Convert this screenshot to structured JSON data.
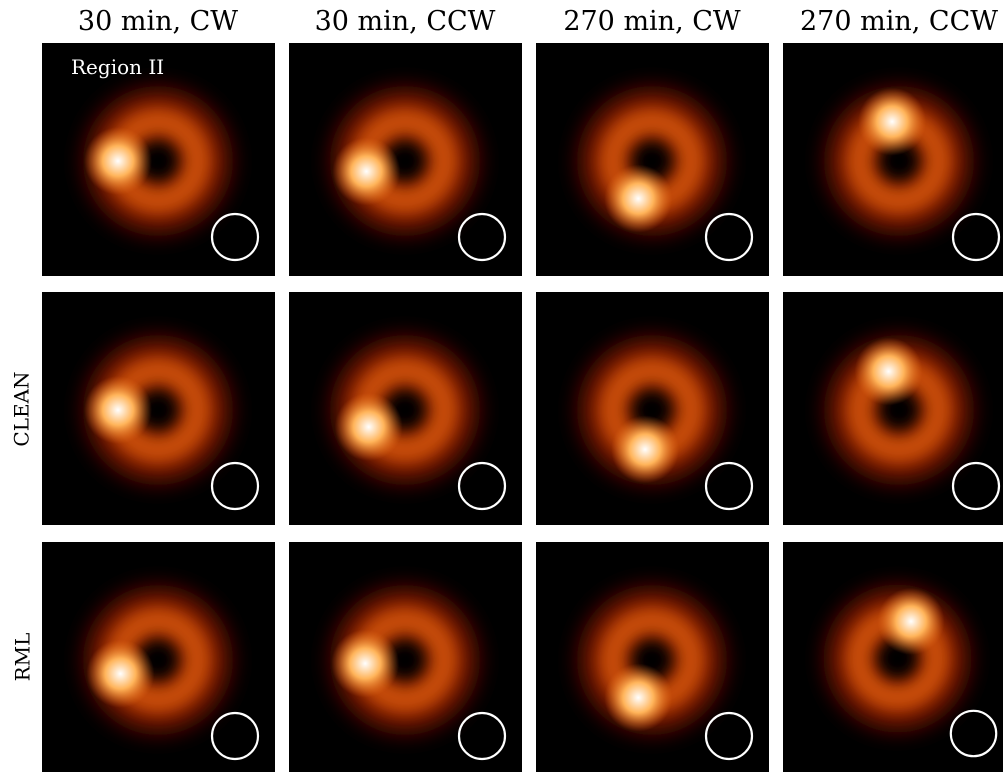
{
  "columns": [
    "30 min, CW",
    "30 min, CCW",
    "270 min, CW",
    "270 min, CCW"
  ],
  "rows": [
    "",
    "CLEAN",
    "RML"
  ],
  "region_label": "Region II",
  "colors": {
    "background": "#000000",
    "colormap": [
      "#000000",
      "#5a0a00",
      "#b83a00",
      "#e8701a",
      "#ffb45a",
      "#ffffff"
    ],
    "beam_circle": "#ffffff"
  },
  "panels": [
    {
      "row": 0,
      "col": 0,
      "hotspot_angle_deg": 180,
      "hotspot_strength": 1.0
    },
    {
      "row": 0,
      "col": 1,
      "hotspot_angle_deg": 195,
      "hotspot_strength": 1.0
    },
    {
      "row": 0,
      "col": 2,
      "hotspot_angle_deg": 250,
      "hotspot_strength": 1.0
    },
    {
      "row": 0,
      "col": 3,
      "hotspot_angle_deg": 100,
      "hotspot_strength": 1.0
    },
    {
      "row": 1,
      "col": 0,
      "hotspot_angle_deg": 180,
      "hotspot_strength": 1.0
    },
    {
      "row": 1,
      "col": 1,
      "hotspot_angle_deg": 205,
      "hotspot_strength": 1.0
    },
    {
      "row": 1,
      "col": 2,
      "hotspot_angle_deg": 260,
      "hotspot_strength": 1.0
    },
    {
      "row": 1,
      "col": 3,
      "hotspot_angle_deg": 105,
      "hotspot_strength": 1.0
    },
    {
      "row": 2,
      "col": 0,
      "hotspot_angle_deg": 200,
      "hotspot_strength": 1.0
    },
    {
      "row": 2,
      "col": 1,
      "hotspot_angle_deg": 185,
      "hotspot_strength": 1.0
    },
    {
      "row": 2,
      "col": 2,
      "hotspot_angle_deg": 250,
      "hotspot_strength": 1.0
    },
    {
      "row": 2,
      "col": 3,
      "hotspot_angle_deg": 70,
      "hotspot_strength": 1.0
    }
  ]
}
